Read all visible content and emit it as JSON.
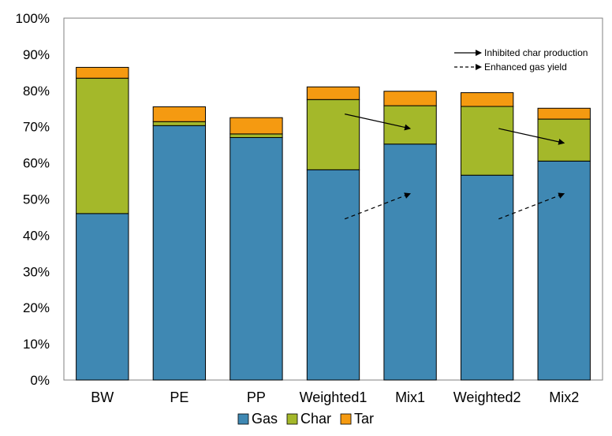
{
  "chart_data": {
    "type": "bar",
    "stacked": true,
    "categories": [
      "BW",
      "PE",
      "PP",
      "Weighted1",
      "Mix1",
      "Weighted2",
      "Mix2"
    ],
    "series": [
      {
        "name": "Gas",
        "color": "#3f88b3",
        "values": [
          46.0,
          70.3,
          67.0,
          58.1,
          65.2,
          56.6,
          60.5
        ]
      },
      {
        "name": "Char",
        "color": "#a4b82a",
        "values": [
          37.4,
          1.1,
          1.0,
          19.4,
          10.6,
          19.0,
          11.6
        ]
      },
      {
        "name": "Tar",
        "color": "#f59a11",
        "values": [
          3.0,
          4.1,
          4.5,
          3.5,
          4.0,
          3.8,
          3.0
        ]
      }
    ],
    "ylim": [
      0,
      100
    ],
    "yticks": [
      "0%",
      "10%",
      "20%",
      "30%",
      "40%",
      "50%",
      "60%",
      "70%",
      "80%",
      "90%",
      "100%"
    ],
    "grid": false,
    "legend_position": "bottom",
    "annotations": {
      "legend": [
        {
          "label": "Inhibited char production",
          "style": "solid"
        },
        {
          "label": "Enhanced gas yield",
          "style": "dashed"
        }
      ],
      "arrows": [
        {
          "style": "solid",
          "from": [
            3.15,
            73.5
          ],
          "to": [
            4.0,
            69.5
          ]
        },
        {
          "style": "dashed",
          "from": [
            3.15,
            44.5
          ],
          "to": [
            4.0,
            51.5
          ]
        },
        {
          "style": "solid",
          "from": [
            5.15,
            69.5
          ],
          "to": [
            6.0,
            65.5
          ]
        },
        {
          "style": "dashed",
          "from": [
            5.15,
            44.5
          ],
          "to": [
            6.0,
            51.5
          ]
        }
      ]
    }
  }
}
